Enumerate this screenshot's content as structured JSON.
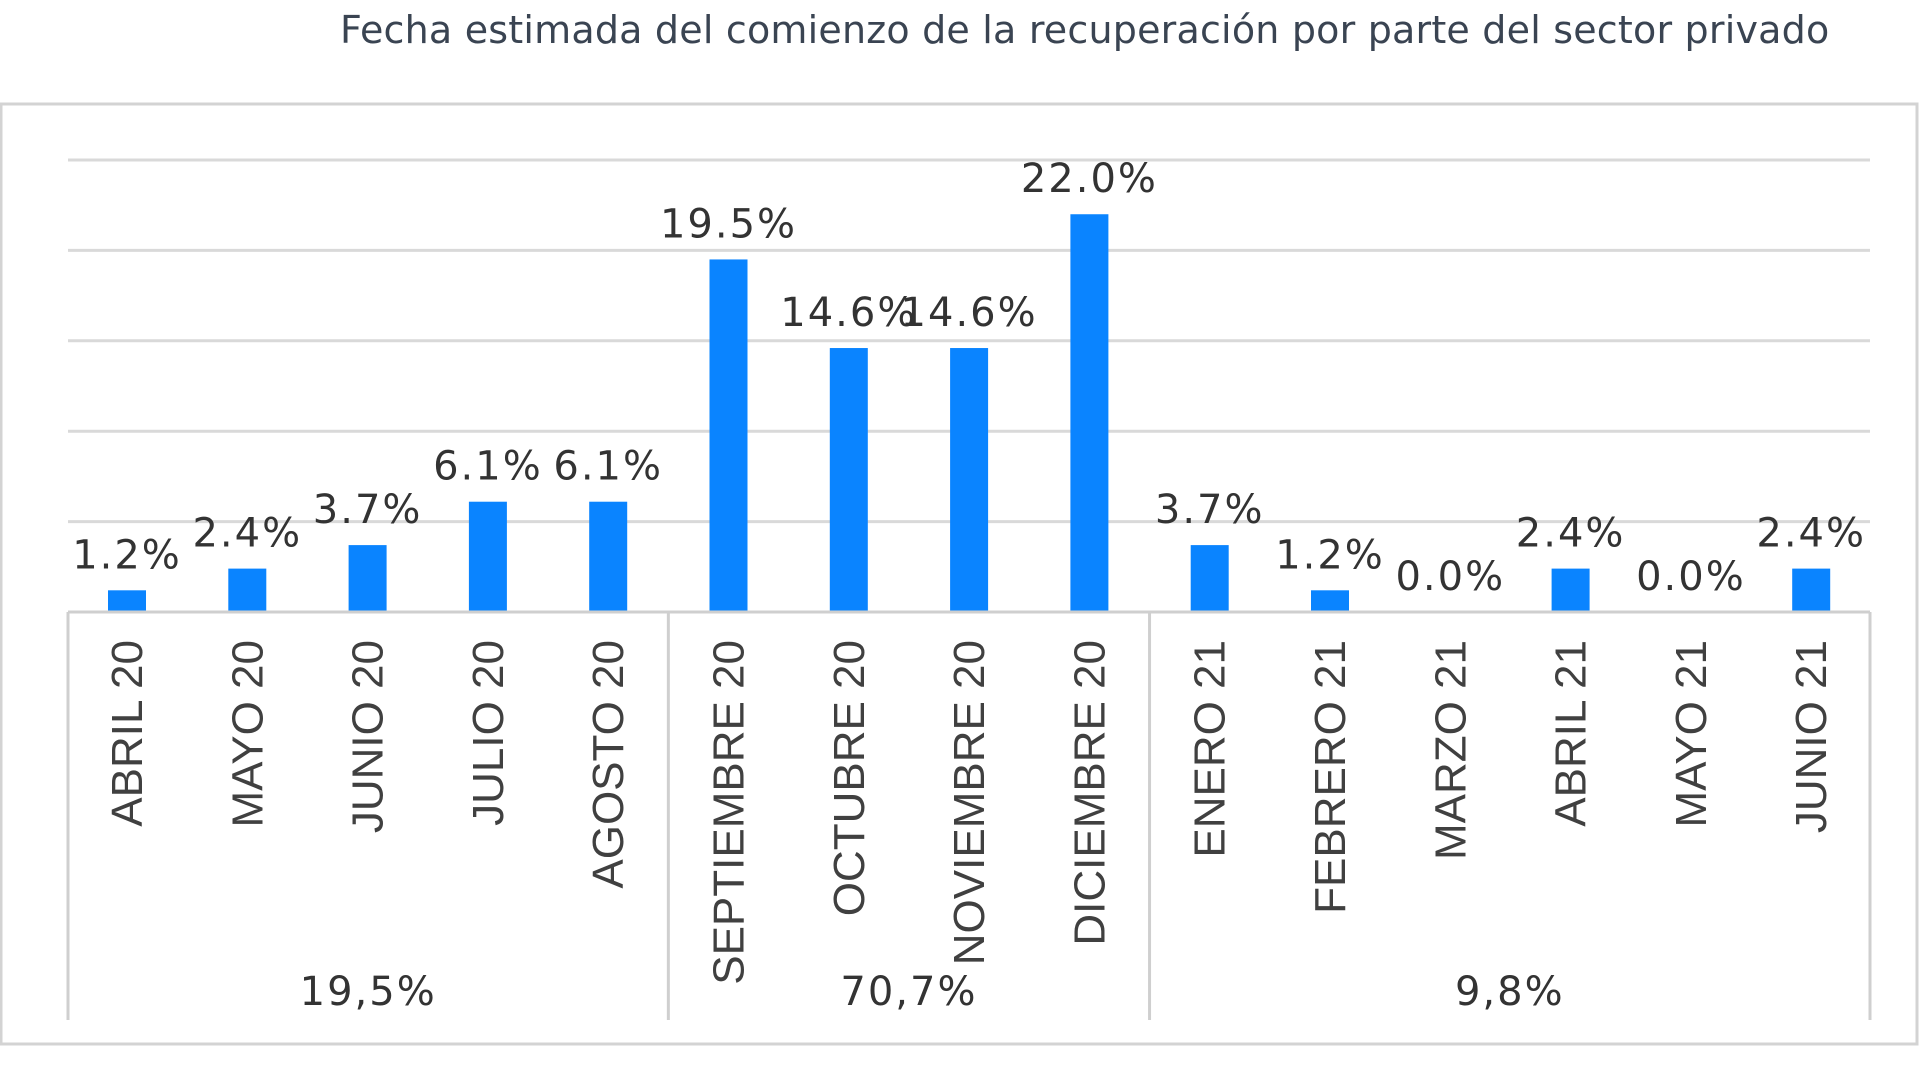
{
  "chart_data": {
    "type": "bar",
    "title": "Fecha estimada del comienzo de la recuperación por parte del sector privado",
    "categories": [
      "ABRIL 20",
      "MAYO 20",
      "JUNIO 20",
      "JULIO 20",
      "AGOSTO 20",
      "SEPTIEMBRE 20",
      "OCTUBRE 20",
      "NOVIEMBRE 20",
      "DICIEMBRE 20",
      "ENERO 21",
      "FEBRERO 21",
      "MARZO 21",
      "ABRIL 21",
      "MAYO 21",
      "JUNIO 21"
    ],
    "values": [
      1.2,
      2.4,
      3.7,
      6.1,
      6.1,
      19.5,
      14.6,
      14.6,
      22.0,
      3.7,
      1.2,
      0.0,
      2.4,
      0.0,
      2.4
    ],
    "value_labels": [
      "1.2%",
      "2.4%",
      "3.7%",
      "6.1%",
      "6.1%",
      "19.5%",
      "14.6%",
      "14.6%",
      "22.0%",
      "3.7%",
      "1.2%",
      "0.0%",
      "2.4%",
      "0.0%",
      "2.4%"
    ],
    "groups": [
      {
        "label": "19,5%",
        "start": 0,
        "end": 4
      },
      {
        "label": "70,7%",
        "start": 5,
        "end": 8
      },
      {
        "label": "9,8%",
        "start": 9,
        "end": 14
      }
    ],
    "ylim": [
      0,
      25
    ],
    "gridlines": [
      0,
      5,
      10,
      15,
      20,
      25
    ],
    "xlabel": "",
    "ylabel": "",
    "bar_color": "#0a84ff"
  }
}
